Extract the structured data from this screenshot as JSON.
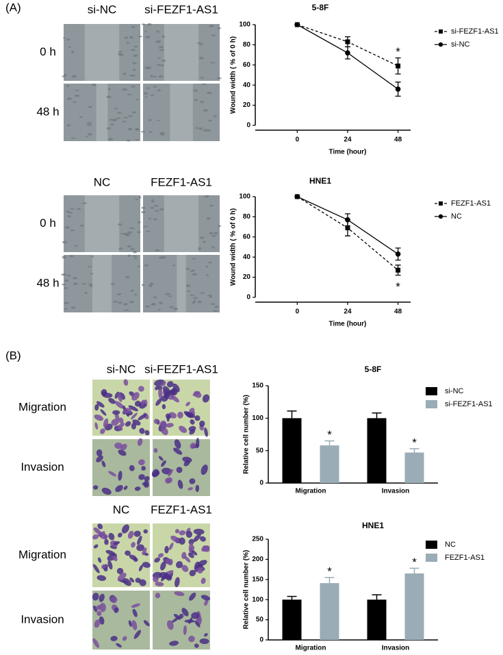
{
  "panel_labels": [
    "(A)",
    "(B)"
  ],
  "image_grids": [
    {
      "columns": [
        "si-NC",
        "si-FEZF1-AS1"
      ],
      "rows": [
        "0 h",
        "48 h"
      ]
    },
    {
      "columns": [
        "NC",
        "FEZF1-AS1"
      ],
      "rows": [
        "0 h",
        "48 h"
      ]
    },
    {
      "columns": [
        "si-NC",
        "si-FEZF1-AS1"
      ],
      "rows": [
        "Migration",
        "Invasion"
      ]
    },
    {
      "columns": [
        "NC",
        "FEZF1-AS1"
      ],
      "rows": [
        "Migration",
        "Invasion"
      ]
    }
  ],
  "chart_data": [
    {
      "type": "line",
      "title": "5-8F",
      "xlabel": "Time (hour)",
      "ylabel": "Wound width ( % of 0 h)",
      "x": [
        0,
        24,
        48
      ],
      "xlim": [
        -20,
        54
      ],
      "xticks": [
        0,
        24,
        48
      ],
      "ylim": [
        0,
        100
      ],
      "yticks": [
        0,
        20,
        40,
        60,
        80,
        100
      ],
      "legend": "upper right",
      "annotations": [
        "*"
      ],
      "series": [
        {
          "name": "si-FEZF1-AS1",
          "color": "#000000",
          "style": "dashed",
          "marker": "square",
          "values": [
            100,
            83,
            59
          ],
          "errors": [
            0,
            5,
            8
          ]
        },
        {
          "name": "si-NC",
          "color": "#000000",
          "style": "solid",
          "marker": "circle",
          "values": [
            100,
            72,
            36
          ],
          "errors": [
            0,
            6,
            7
          ]
        }
      ]
    },
    {
      "type": "line",
      "title": "HNE1",
      "xlabel": "Time (hour)",
      "ylabel": "Wound width ( % of 0 h)",
      "x": [
        0,
        24,
        48
      ],
      "xlim": [
        -20,
        54
      ],
      "xticks": [
        0,
        24,
        48
      ],
      "ylim": [
        0,
        100
      ],
      "yticks": [
        0,
        20,
        40,
        60,
        80,
        100
      ],
      "legend": "upper right",
      "annotations": [
        "*"
      ],
      "series": [
        {
          "name": "FEZF1-AS1",
          "color": "#000000",
          "style": "dashed",
          "marker": "square",
          "values": [
            100,
            69,
            27
          ],
          "errors": [
            0,
            8,
            5
          ]
        },
        {
          "name": "NC",
          "color": "#000000",
          "style": "solid",
          "marker": "circle",
          "values": [
            100,
            77,
            43
          ],
          "errors": [
            0,
            6,
            6
          ]
        }
      ]
    },
    {
      "type": "bar",
      "title": "5-8F",
      "ylabel": "Relative cell number (%)",
      "categories": [
        "Migration",
        "Invasion"
      ],
      "ylim": [
        0,
        150
      ],
      "yticks": [
        0,
        50,
        100,
        150
      ],
      "legend": "upper right",
      "annotations": [
        "*",
        "*"
      ],
      "series": [
        {
          "name": "si-NC",
          "color": "#000000",
          "values": [
            100,
            100
          ],
          "errors": [
            11,
            8
          ]
        },
        {
          "name": "si-FEZF1-AS1",
          "color": "#9aacb5",
          "values": [
            58,
            47
          ],
          "errors": [
            7,
            6
          ]
        }
      ]
    },
    {
      "type": "bar",
      "title": "HNE1",
      "ylabel": "Relative cell number (%)",
      "categories": [
        "Migration",
        "Invasion"
      ],
      "ylim": [
        0,
        250
      ],
      "yticks": [
        0,
        50,
        100,
        150,
        200,
        250
      ],
      "legend": "upper right",
      "annotations": [
        "*",
        "*"
      ],
      "series": [
        {
          "name": "NC",
          "color": "#000000",
          "values": [
            100,
            100
          ],
          "errors": [
            8,
            12
          ]
        },
        {
          "name": "FEZF1-AS1",
          "color": "#9aacb5",
          "values": [
            141,
            165
          ],
          "errors": [
            14,
            13
          ]
        }
      ]
    }
  ]
}
